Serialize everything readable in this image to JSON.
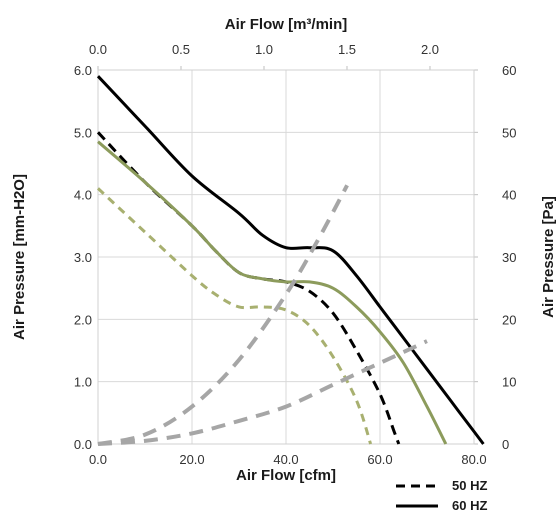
{
  "chart_data": {
    "type": "line",
    "xlabel": "Air Flow [cfm]",
    "x2label": "Air Flow [m³/min]",
    "ylabel": "Air Pressure [mm-H2O]",
    "y2label": "Air Pressure [Pa]",
    "xlim": [
      0,
      80
    ],
    "ylim": [
      0,
      6
    ],
    "x2lim": [
      0,
      2.2652
    ],
    "y2lim": [
      0,
      60
    ],
    "x_ticks": [
      "0.0",
      "20.0",
      "40.0",
      "60.0",
      "80.0"
    ],
    "y_ticks": [
      "0.0",
      "1.0",
      "2.0",
      "3.0",
      "4.0",
      "5.0",
      "6.0"
    ],
    "x2_ticks": [
      "0.0",
      "0.5",
      "1.0",
      "1.5",
      "2.0"
    ],
    "y2_ticks": [
      "0",
      "10",
      "20",
      "30",
      "40",
      "50",
      "60"
    ],
    "grid": true,
    "legend": {
      "position": "bottom-right",
      "entries": [
        {
          "label": "50 HZ",
          "style": "dashed",
          "color": "#000000"
        },
        {
          "label": "60 HZ",
          "style": "solid",
          "color": "#000000"
        }
      ]
    },
    "series": [
      {
        "color": "#000000",
        "dash": "none",
        "points": [
          [
            0,
            5.9
          ],
          [
            10,
            5.1
          ],
          [
            20,
            4.3
          ],
          [
            30,
            3.7
          ],
          [
            35,
            3.35
          ],
          [
            40,
            3.15
          ],
          [
            45,
            3.15
          ],
          [
            50,
            3.1
          ],
          [
            55,
            2.7
          ],
          [
            60,
            2.2
          ],
          [
            65,
            1.7
          ],
          [
            70,
            1.2
          ],
          [
            75,
            0.7
          ],
          [
            80,
            0.2
          ],
          [
            82,
            0
          ]
        ]
      },
      {
        "color": "#000000",
        "dash": "10,6",
        "points": [
          [
            0,
            5.0
          ],
          [
            10,
            4.2
          ],
          [
            20,
            3.5
          ],
          [
            25,
            3.1
          ],
          [
            30,
            2.75
          ],
          [
            35,
            2.65
          ],
          [
            40,
            2.6
          ],
          [
            45,
            2.45
          ],
          [
            50,
            2.1
          ],
          [
            55,
            1.5
          ],
          [
            60,
            0.8
          ],
          [
            63,
            0.2
          ],
          [
            64,
            0
          ]
        ]
      },
      {
        "color": "#8c9b5c",
        "dash": "none",
        "points": [
          [
            0,
            4.85
          ],
          [
            10,
            4.2
          ],
          [
            20,
            3.5
          ],
          [
            25,
            3.1
          ],
          [
            30,
            2.75
          ],
          [
            35,
            2.65
          ],
          [
            40,
            2.6
          ],
          [
            45,
            2.6
          ],
          [
            50,
            2.5
          ],
          [
            55,
            2.2
          ],
          [
            60,
            1.8
          ],
          [
            65,
            1.3
          ],
          [
            70,
            0.6
          ],
          [
            74,
            0
          ]
        ]
      },
      {
        "color": "#a8b070",
        "dash": "8,6",
        "points": [
          [
            0,
            4.1
          ],
          [
            10,
            3.4
          ],
          [
            20,
            2.7
          ],
          [
            25,
            2.4
          ],
          [
            30,
            2.2
          ],
          [
            35,
            2.2
          ],
          [
            40,
            2.15
          ],
          [
            45,
            1.9
          ],
          [
            50,
            1.4
          ],
          [
            55,
            0.7
          ],
          [
            58,
            0
          ]
        ]
      },
      {
        "color": "#a6a6a6",
        "dash": "14,9",
        "points": [
          [
            0,
            0
          ],
          [
            10,
            0.15
          ],
          [
            20,
            0.6
          ],
          [
            30,
            1.35
          ],
          [
            40,
            2.4
          ],
          [
            47,
            3.3
          ],
          [
            53,
            4.15
          ]
        ]
      },
      {
        "color": "#a6a6a6",
        "dash": "14,9",
        "points": [
          [
            0,
            0
          ],
          [
            10,
            0.05
          ],
          [
            20,
            0.17
          ],
          [
            30,
            0.37
          ],
          [
            40,
            0.6
          ],
          [
            50,
            0.95
          ],
          [
            60,
            1.3
          ],
          [
            70,
            1.65
          ]
        ]
      }
    ]
  }
}
